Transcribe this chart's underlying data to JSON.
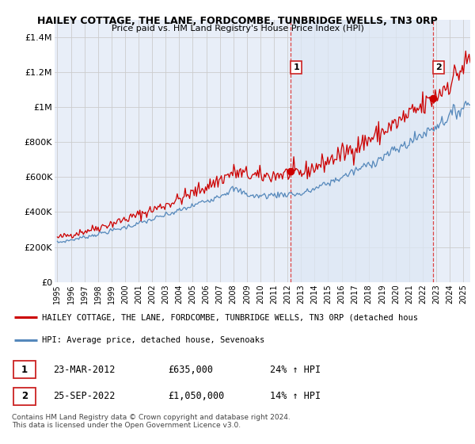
{
  "title1": "HAILEY COTTAGE, THE LANE, FORDCOMBE, TUNBRIDGE WELLS, TN3 0RP",
  "title2": "Price paid vs. HM Land Registry's House Price Index (HPI)",
  "xlim": [
    1994.8,
    2025.5
  ],
  "ylim": [
    0,
    1500000
  ],
  "yticks": [
    0,
    200000,
    400000,
    600000,
    800000,
    1000000,
    1200000,
    1400000
  ],
  "ytick_labels": [
    "£0",
    "£200K",
    "£400K",
    "£600K",
    "£800K",
    "£1M",
    "£1.2M",
    "£1.4M"
  ],
  "xticks": [
    1995,
    1996,
    1997,
    1998,
    1999,
    2000,
    2001,
    2002,
    2003,
    2004,
    2005,
    2006,
    2007,
    2008,
    2009,
    2010,
    2011,
    2012,
    2013,
    2014,
    2015,
    2016,
    2017,
    2018,
    2019,
    2020,
    2021,
    2022,
    2023,
    2024,
    2025
  ],
  "sale1_x": 2012.22,
  "sale1_y": 635000,
  "sale2_x": 2022.73,
  "sale2_y": 1050000,
  "red_line_color": "#cc0000",
  "blue_line_color": "#5588bb",
  "vline_color": "#dd4444",
  "highlight_color": "#dde8f5",
  "legend_red_label": "HAILEY COTTAGE, THE LANE, FORDCOMBE, TUNBRIDGE WELLS, TN3 0RP (detached hous",
  "legend_blue_label": "HPI: Average price, detached house, Sevenoaks",
  "annotation1_date": "23-MAR-2012",
  "annotation1_price": "£635,000",
  "annotation1_hpi": "24% ↑ HPI",
  "annotation2_date": "25-SEP-2022",
  "annotation2_price": "£1,050,000",
  "annotation2_hpi": "14% ↑ HPI",
  "footnote": "Contains HM Land Registry data © Crown copyright and database right 2024.\nThis data is licensed under the Open Government Licence v3.0.",
  "bg_color": "#e8eef8",
  "plot_bg": "#ffffff",
  "grid_color": "#cccccc"
}
